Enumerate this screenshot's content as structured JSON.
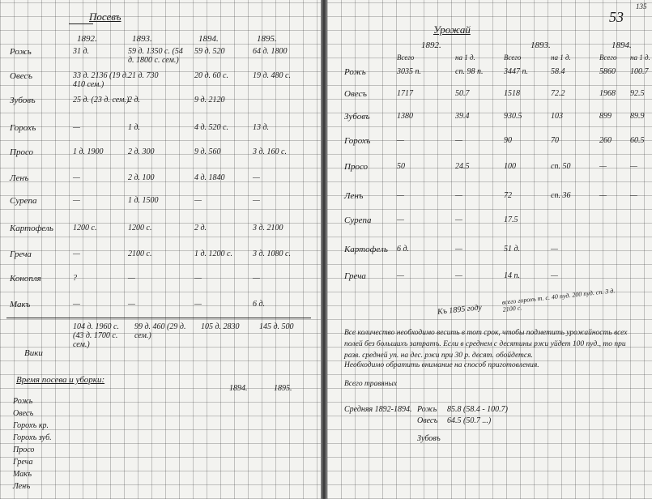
{
  "left_page": {
    "title": "Посевъ",
    "years": [
      "1892.",
      "1893.",
      "1894.",
      "1895."
    ],
    "rows": [
      {
        "label": "Рожь",
        "cells": [
          "31 д.",
          "59 д. 1350 с. (54 д. 1800 с. сем.)",
          "59 д. 520",
          "64 д. 1800"
        ]
      },
      {
        "label": "Овесъ",
        "cells": [
          "33 д. 2136 (19 д. 410 сем.)",
          "21 д. 730",
          "20 д. 60 с.",
          "19 д. 480 с."
        ]
      },
      {
        "label": "Зубовъ",
        "cells": [
          "25 д. (23 д. сем.)",
          "2 д.",
          "9 д. 2120",
          null
        ]
      },
      {
        "label": "Горохъ",
        "cells": [
          "—",
          "1 д.",
          "4 д. 520 с.",
          "13 д."
        ]
      },
      {
        "label": "Просо",
        "cells": [
          "1 д. 1900",
          "2 д. 300",
          "9 д. 560",
          "3 д. 160 с."
        ]
      },
      {
        "label": "Ленъ",
        "cells": [
          "—",
          "2 д. 100",
          "4 д. 1840",
          "—"
        ]
      },
      {
        "label": "Сурепа",
        "cells": [
          "—",
          "1 д. 1500",
          "—",
          "—"
        ]
      },
      {
        "label": "Картофель",
        "cells": [
          "1200 с.",
          "1200 с.",
          "2 д.",
          "3 д. 2100"
        ]
      },
      {
        "label": "Греча",
        "cells": [
          "—",
          "2100 с.",
          "1 д. 1200 с.",
          "3 д. 1080 с."
        ]
      },
      {
        "label": "Конопля",
        "cells": [
          "?",
          "—",
          "—",
          "—"
        ]
      },
      {
        "label": "Макъ",
        "cells": [
          "—",
          "—",
          "—",
          "6 д."
        ]
      }
    ],
    "totals": [
      "104 д. 1960 с. (43 д. 1700 с. сем.)",
      "99 д. 460 (29 д. сем.)",
      "105 д. 2830",
      "145 д. 500"
    ],
    "totals_label": "Вики",
    "section_title": "Время посева и уборки:",
    "section_years": [
      "1894.",
      "1895."
    ],
    "section_items": [
      "Рожь",
      "Овесъ",
      "Горохъ кр.",
      "Горохъ зуб.",
      "Просо",
      "Греча",
      "Макъ",
      "Ленъ"
    ]
  },
  "right_page": {
    "page_numbers": [
      "135",
      "53"
    ],
    "title": "Урожай",
    "years": [
      "1892.",
      "1893.",
      "1894."
    ],
    "subheaders": [
      "Всего",
      "на 1 д.",
      "Всего",
      "на 1 д.",
      "Всего",
      "на 1 д."
    ],
    "rows": [
      {
        "label": "Рожь",
        "cells": [
          "3035 п.",
          "сп. 98 п.",
          "3447 п.",
          "58.4",
          "5860",
          "100.7"
        ]
      },
      {
        "label": "Овесъ",
        "cells": [
          "1717",
          "50.7",
          "1518",
          "72.2",
          "1968",
          "92.5"
        ]
      },
      {
        "label": "Зубовъ",
        "cells": [
          "1380",
          "39.4",
          "930.5",
          "103",
          "899",
          "89.9"
        ]
      },
      {
        "label": "Горохъ",
        "cells": [
          "—",
          "—",
          "90",
          "70",
          "260",
          "60.5"
        ]
      },
      {
        "label": "Просо",
        "cells": [
          "50",
          "24.5",
          "100",
          "сп. 50",
          "—",
          "—"
        ]
      },
      {
        "label": "Ленъ",
        "cells": [
          "—",
          "—",
          "72",
          "сп. 36",
          "—",
          "—"
        ]
      },
      {
        "label": "Сурепа",
        "cells": [
          "—",
          "—",
          "17.5",
          null,
          null,
          null
        ]
      },
      {
        "label": "Картофель",
        "cells": [
          "6 д.",
          "—",
          "51 д.",
          "—",
          null,
          null
        ]
      },
      {
        "label": "Греча",
        "cells": [
          "—",
          "—",
          "14 п.",
          "—",
          null,
          null
        ]
      }
    ],
    "note": "Къ 1895 году",
    "note_side": "всего горохъ т. с. 40 пуд. 200 пуд. сп. 3 д. 2100 с.",
    "paragraphs": [
      "Все количество необходимо весить в тот срок, чтобы подметить урожайность всех полей без большихъ затратъ. Если в среднем с десятины ржи уйдет 100 пуд., то при разв. средней уп. на дес. ржи при 30 р. десят. обойдется.",
      "Необходимо обратить внимание на способ приготовления.",
      "Всего травяных"
    ],
    "average_label": "Средняя 1892-1894.",
    "averages": [
      {
        "label": "Рожь",
        "value": "85.8 (58.4 - 100.7)"
      },
      {
        "label": "Овесъ",
        "value": "64.5 (50.7 ...)"
      },
      {
        "label": "Зубовъ",
        "value": null
      }
    ]
  }
}
